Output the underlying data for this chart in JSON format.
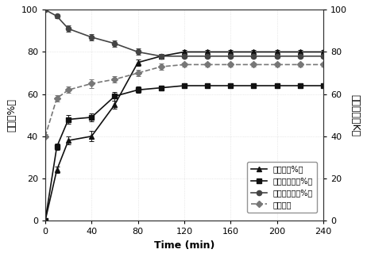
{
  "time": [
    0,
    10,
    20,
    40,
    60,
    80,
    100,
    120,
    140,
    160,
    180,
    200,
    220,
    240
  ],
  "decolor_rate": [
    0,
    24,
    38,
    40,
    55,
    75,
    78,
    80,
    80,
    80,
    80,
    80,
    80,
    80
  ],
  "protein_removal": [
    0,
    35,
    48,
    49,
    59,
    62,
    63,
    64,
    64,
    64,
    64,
    64,
    64,
    64
  ],
  "polysaccharide_recovery": [
    100,
    97,
    91,
    87,
    84,
    80,
    78,
    78,
    78,
    78,
    78,
    78,
    78,
    78
  ],
  "selectivity": [
    40,
    58,
    62,
    65,
    67,
    70,
    73,
    74,
    74,
    74,
    74,
    74,
    74,
    74
  ],
  "decolor_err": [
    0,
    1.5,
    2,
    2.5,
    2,
    1.5,
    1,
    0.8,
    0.8,
    0.8,
    0.8,
    0.8,
    0.8,
    0.8
  ],
  "protein_err": [
    0,
    1.5,
    2,
    2,
    2,
    1.5,
    1,
    0.8,
    0.8,
    0.8,
    0.8,
    0.8,
    0.8,
    0.8
  ],
  "polysaccharide_err": [
    0,
    1,
    1.5,
    1.5,
    1.5,
    1.5,
    1,
    0.8,
    0.8,
    0.8,
    0.8,
    0.8,
    0.8,
    0.8
  ],
  "selectivity_err": [
    1,
    1.5,
    1.5,
    2,
    1.5,
    1.5,
    1.5,
    1,
    1,
    1,
    1,
    1,
    1,
    1
  ],
  "xlabel": "Time (min)",
  "ylabel_left": "比例（%）",
  "ylabel_right": "选择系数（K）",
  "xlim": [
    0,
    240
  ],
  "ylim_left": [
    0,
    100
  ],
  "ylim_right": [
    0,
    100
  ],
  "xticks": [
    0,
    40,
    80,
    120,
    160,
    200,
    240
  ],
  "yticks_left": [
    0,
    20,
    40,
    60,
    80,
    100
  ],
  "yticks_right": [
    0,
    20,
    40,
    60,
    80,
    100
  ],
  "legend_labels": [
    "脆色率（%）",
    "蛋白去除率（%）",
    "多糖回收率（%）",
    "选择系数"
  ],
  "bg_color": "#ffffff"
}
